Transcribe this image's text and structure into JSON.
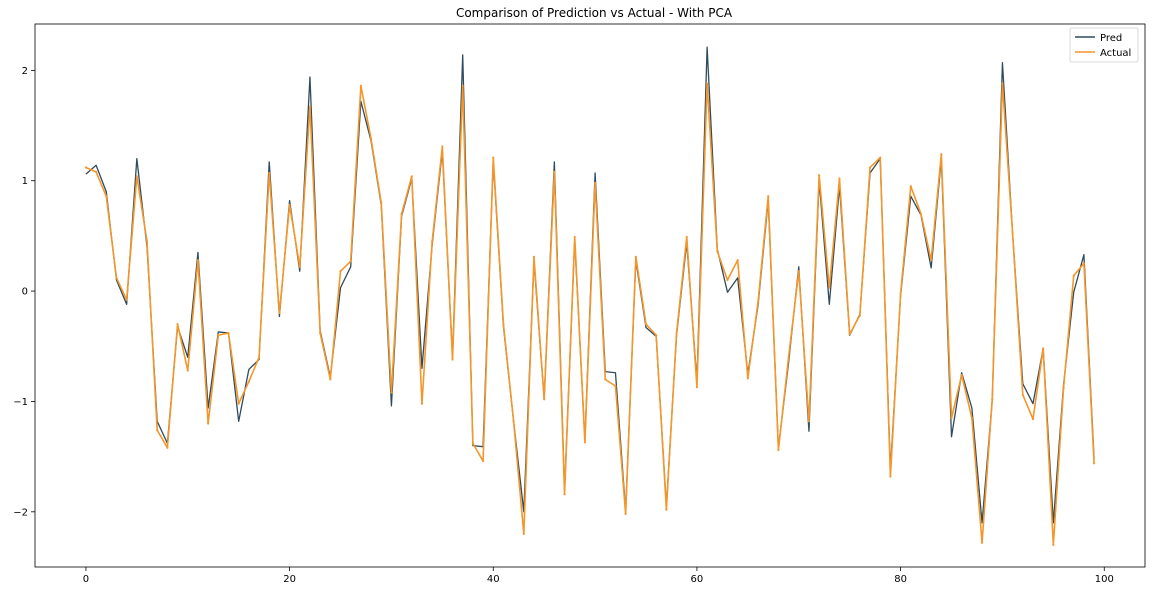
{
  "chart_data": {
    "type": "line",
    "title": "Comparison of Prediction vs Actual - With PCA",
    "xlabel": "",
    "ylabel": "",
    "xlim": [
      -5,
      104
    ],
    "ylim": [
      -2.5,
      2.42
    ],
    "xticks": [
      0,
      20,
      40,
      60,
      80,
      100
    ],
    "xtick_labels": [
      "0",
      "20",
      "40",
      "60",
      "80",
      "100"
    ],
    "yticks": [
      -2,
      -1,
      0,
      1,
      2
    ],
    "ytick_labels": [
      "−2",
      "−1",
      "0",
      "1",
      "2"
    ],
    "grid": false,
    "legend_position": "top-right",
    "colors": {
      "pred": "#2f4b5f",
      "actual": "#f5962a"
    },
    "x": [
      0,
      1,
      2,
      3,
      4,
      5,
      6,
      7,
      8,
      9,
      10,
      11,
      12,
      13,
      14,
      15,
      16,
      17,
      18,
      19,
      20,
      21,
      22,
      23,
      24,
      25,
      26,
      27,
      28,
      29,
      30,
      31,
      32,
      33,
      34,
      35,
      36,
      37,
      38,
      39,
      40,
      41,
      42,
      43,
      44,
      45,
      46,
      47,
      48,
      49,
      50,
      51,
      52,
      53,
      54,
      55,
      56,
      57,
      58,
      59,
      60,
      61,
      62,
      63,
      64,
      65,
      66,
      67,
      68,
      69,
      70,
      71,
      72,
      73,
      74,
      75,
      76,
      77,
      78,
      79,
      80,
      81,
      82,
      83,
      84,
      85,
      86,
      87,
      88,
      89,
      90,
      91,
      92,
      93,
      94,
      95,
      96,
      97,
      98,
      99
    ],
    "series": [
      {
        "name": "Pred",
        "values": [
          1.06,
          1.14,
          0.9,
          0.1,
          -0.12,
          1.2,
          0.4,
          -1.18,
          -1.38,
          -0.32,
          -0.6,
          0.35,
          -1.06,
          -0.37,
          -0.38,
          -1.18,
          -0.71,
          -0.62,
          1.17,
          -0.23,
          0.82,
          0.18,
          1.94,
          -0.36,
          -0.78,
          0.03,
          0.22,
          1.72,
          1.36,
          0.78,
          -1.04,
          0.68,
          1.02,
          -0.7,
          0.42,
          1.27,
          -0.6,
          2.14,
          -1.4,
          -1.41,
          1.18,
          -0.32,
          -1.18,
          -2.0,
          0.27,
          -0.98,
          1.17,
          -1.81,
          0.46,
          -1.35,
          1.07,
          -0.73,
          -0.74,
          -1.99,
          0.28,
          -0.33,
          -0.41,
          -1.95,
          -0.4,
          0.44,
          -0.82,
          2.21,
          0.38,
          -0.01,
          0.12,
          -0.75,
          -0.13,
          0.82,
          -1.42,
          -0.65,
          0.22,
          -1.27,
          1.0,
          -0.12,
          0.95,
          -0.4,
          -0.21,
          1.07,
          1.2,
          -1.62,
          -0.04,
          0.86,
          0.69,
          0.21,
          1.2,
          -1.32,
          -0.74,
          -1.06,
          -2.1,
          -0.99,
          2.07,
          0.52,
          -0.84,
          -1.02,
          -0.52,
          -2.1,
          -0.85,
          -0.01,
          0.33,
          -1.52
        ]
      },
      {
        "name": "Actual",
        "values": [
          1.12,
          1.08,
          0.86,
          0.12,
          -0.08,
          1.04,
          0.45,
          -1.26,
          -1.42,
          -0.3,
          -0.72,
          0.28,
          -1.2,
          -0.4,
          -0.38,
          -1.02,
          -0.82,
          -0.6,
          1.07,
          -0.2,
          0.78,
          0.22,
          1.67,
          -0.38,
          -0.8,
          0.18,
          0.27,
          1.86,
          1.38,
          0.8,
          -0.92,
          0.7,
          1.04,
          -1.02,
          0.45,
          1.31,
          -0.62,
          1.86,
          -1.38,
          -1.54,
          1.21,
          -0.3,
          -1.18,
          -2.2,
          0.31,
          -0.98,
          1.08,
          -1.84,
          0.49,
          -1.37,
          0.98,
          -0.8,
          -0.86,
          -2.02,
          0.31,
          -0.3,
          -0.4,
          -1.98,
          -0.38,
          0.49,
          -0.87,
          1.88,
          0.36,
          0.1,
          0.28,
          -0.79,
          -0.1,
          0.86,
          -1.44,
          -0.6,
          0.18,
          -1.18,
          1.05,
          0.03,
          1.02,
          -0.39,
          -0.22,
          1.12,
          1.21,
          -1.68,
          -0.02,
          0.95,
          0.7,
          0.28,
          1.24,
          -1.15,
          -0.76,
          -1.15,
          -2.28,
          -0.98,
          1.88,
          0.52,
          -0.94,
          -1.16,
          -0.52,
          -2.3,
          -0.88,
          0.14,
          0.25,
          -1.56
        ]
      }
    ]
  }
}
